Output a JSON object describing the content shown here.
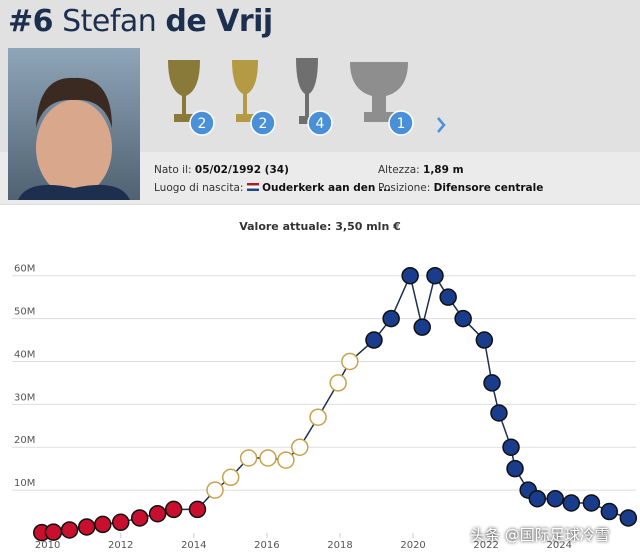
{
  "header": {
    "number": "#6",
    "first_name": "Stefan",
    "last_name": "de Vrij"
  },
  "trophies": [
    {
      "count": 2
    },
    {
      "count": 2
    },
    {
      "count": 4
    },
    {
      "count": 1
    }
  ],
  "info": {
    "born_label": "Nato il:",
    "born_value": "05/02/1992 (34)",
    "birthplace_label": "Luogo di nascita:",
    "birthplace_value": "Ouderkerk aan den ...",
    "height_label": "Altezza:",
    "height_value": "1,89 m",
    "position_label": "Posizione:",
    "position_value": "Difensore centrale"
  },
  "watermark": "头条 @国际足球冷雪",
  "chart_data": {
    "type": "line",
    "title": "Valore attuale: 3,50 mln €",
    "x": [
      2009.84,
      2010.16,
      2010.6,
      2011.07,
      2011.51,
      2012.0,
      2012.52,
      2013.01,
      2013.45,
      2014.1,
      2014.58,
      2015.01,
      2015.5,
      2016.03,
      2016.52,
      2016.9,
      2017.4,
      2017.95,
      2018.27,
      2018.93,
      2019.4,
      2019.92,
      2020.25,
      2020.6,
      2020.96,
      2021.37,
      2021.95,
      2022.16,
      2022.35,
      2022.68,
      2022.79,
      2023.15,
      2023.4,
      2023.89,
      2024.33,
      2024.88,
      2025.37,
      2025.89
    ],
    "values": [
      0.1,
      0.2,
      0.7,
      1.4,
      2,
      2.5,
      3.5,
      4.5,
      5.5,
      5.5,
      10,
      13,
      17.5,
      17.5,
      17,
      20,
      27,
      35,
      40,
      45,
      50,
      60,
      48,
      60,
      55,
      50,
      45,
      35,
      28,
      20,
      15,
      10,
      8,
      8,
      7,
      7,
      5,
      3.5
    ],
    "color": "#1d2f4f",
    "marker_colors": [
      "#c8102e",
      "#c8102e",
      "#c8102e",
      "#c8102e",
      "#c8102e",
      "#c8102e",
      "#c8102e",
      "#c8102e",
      "#c8102e",
      "#c8102e",
      "#87b8e0",
      "#87b8e0",
      "#87b8e0",
      "#87b8e0",
      "#87b8e0",
      "#87b8e0",
      "#87b8e0",
      "#87b8e0",
      "#87b8e0",
      "#1a3c8c",
      "#1a3c8c",
      "#1a3c8c",
      "#1a3c8c",
      "#1a3c8c",
      "#1a3c8c",
      "#1a3c8c",
      "#1a3c8c",
      "#1a3c8c",
      "#1a3c8c",
      "#1a3c8c",
      "#1a3c8c",
      "#1a3c8c",
      "#1a3c8c",
      "#1a3c8c",
      "#1a3c8c",
      "#1a3c8c",
      "#1a3c8c",
      "#1a3c8c"
    ],
    "xlim": [
      2009.6,
      2026.1
    ],
    "xticks": [
      2010,
      2012,
      2014,
      2016,
      2018,
      2020,
      2022,
      2024
    ],
    "ylim": [
      0,
      66
    ],
    "yticks": [
      {
        "value": 10,
        "label": "10M"
      },
      {
        "value": 20,
        "label": "20M"
      },
      {
        "value": 30,
        "label": "30M"
      },
      {
        "value": 40,
        "label": "40M"
      },
      {
        "value": 50,
        "label": "50M"
      },
      {
        "value": 60,
        "label": "60M"
      }
    ],
    "grid": true
  }
}
